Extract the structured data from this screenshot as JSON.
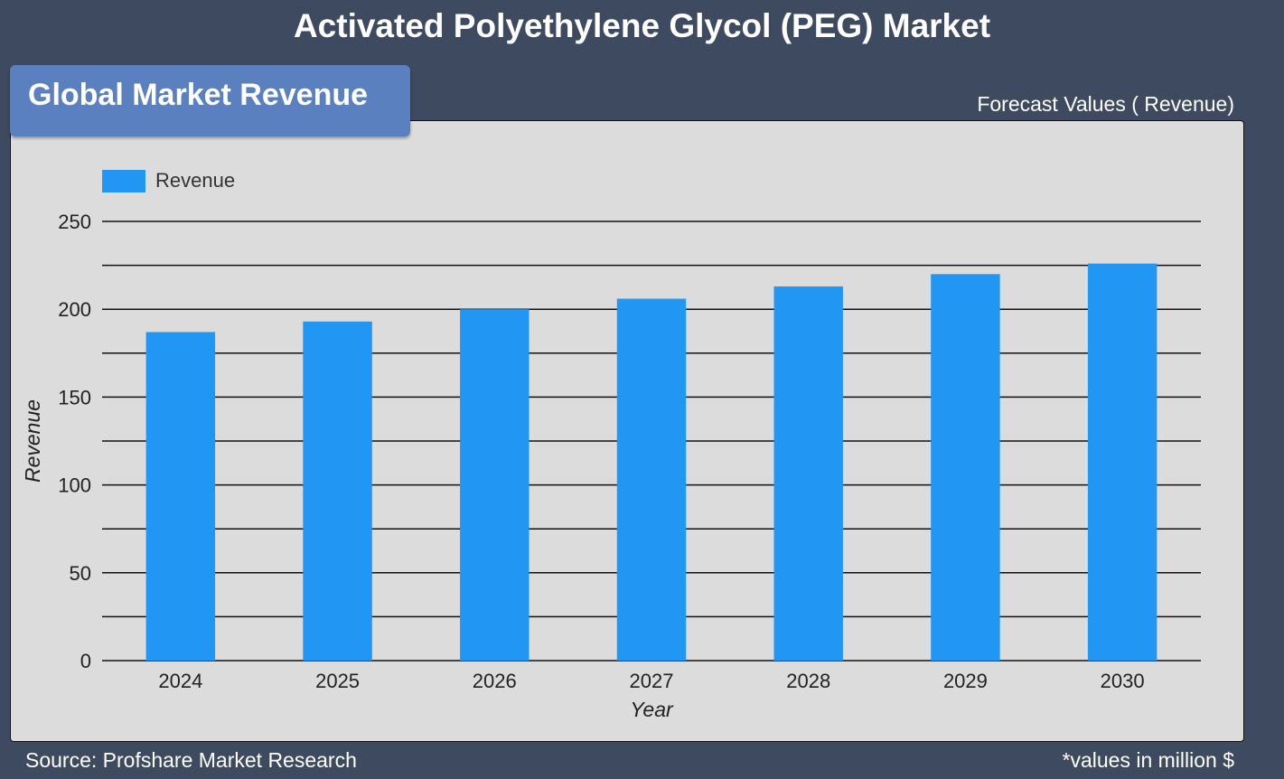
{
  "header": {
    "title": "Activated Polyethylene Glycol (PEG) Market",
    "subtitle": "Global Market Revenue",
    "forecast_label": "Forecast Values ( Revenue)"
  },
  "footer": {
    "source": "Source: Profshare Market Research",
    "note": "*values in million $"
  },
  "colors": {
    "background": "#3e4a5f",
    "panel": "#dcdcdc",
    "bar": "#2196f3",
    "subtitle_tab": "#5a80c0"
  },
  "chart_data": {
    "type": "bar",
    "categories": [
      "2024",
      "2025",
      "2026",
      "2027",
      "2028",
      "2029",
      "2030"
    ],
    "series": [
      {
        "name": "Revenue",
        "values": [
          187,
          193,
          200,
          206,
          213,
          220,
          226
        ]
      }
    ],
    "xlabel": "Year",
    "ylabel": "Revenue",
    "ylim": [
      0,
      250
    ],
    "yticks": [
      0,
      50,
      100,
      150,
      200,
      250
    ],
    "grid": true,
    "legend": "top-left"
  }
}
